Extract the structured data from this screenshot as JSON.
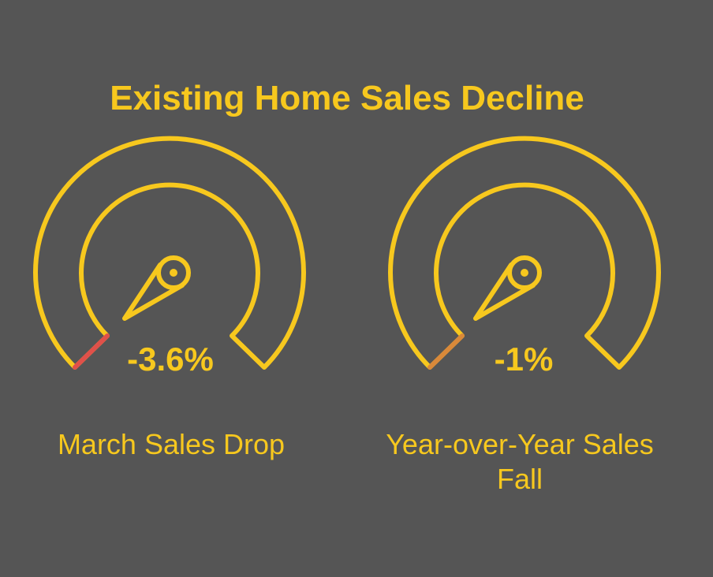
{
  "title": "Existing Home Sales Decline",
  "gauges": [
    {
      "value": "-3.6%",
      "label": "March Sales Drop"
    },
    {
      "value": "-1%",
      "label": "Year-over-Year Sales Fall"
    }
  ]
}
